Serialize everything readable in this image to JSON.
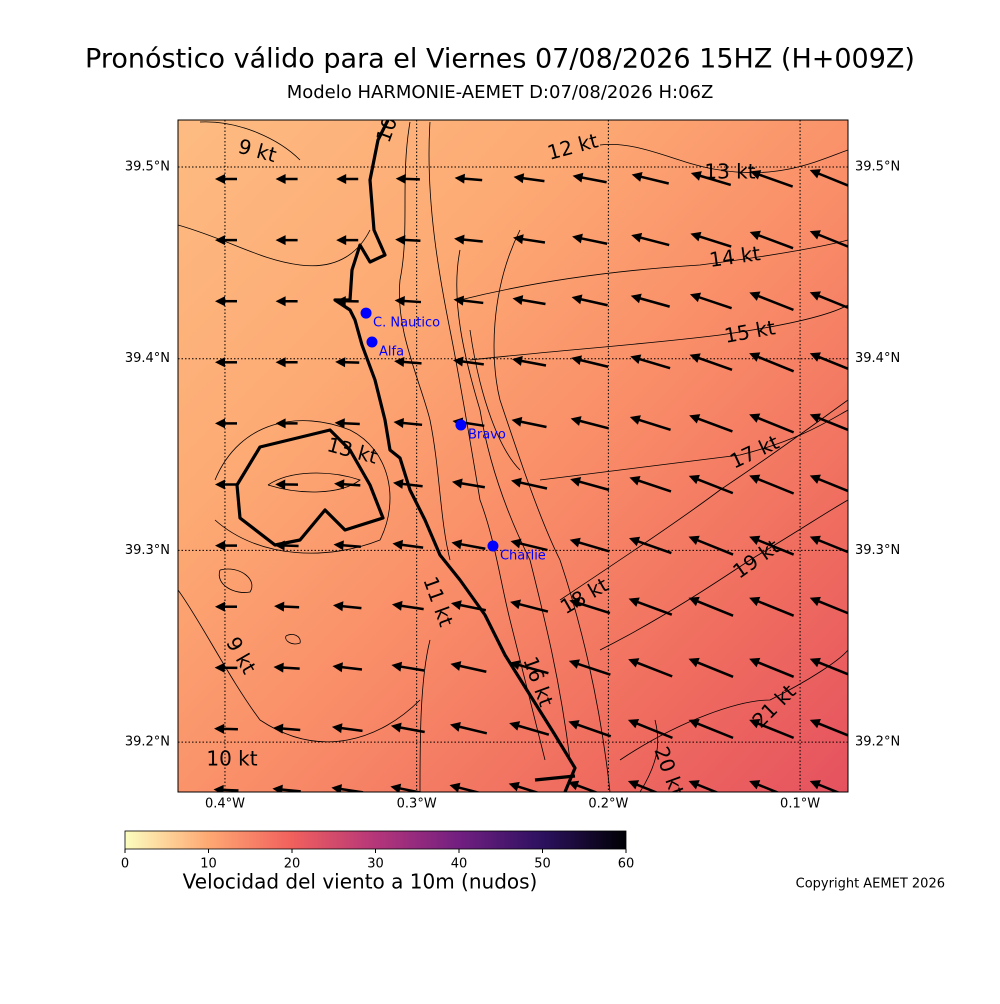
{
  "title": "Pronóstico válido para el Viernes 07/08/2026 15HZ (H+009Z)",
  "subtitle": "Modelo HARMONIE-AEMET D:07/08/2026 H:06Z",
  "copyright": "Copyright AEMET 2026",
  "chart_data": {
    "type": "map",
    "xlim": [
      -0.4245,
      -0.075
    ],
    "ylim": [
      39.174,
      39.5245
    ],
    "xticks": [
      {
        "value": -0.4,
        "label": "0.4°W"
      },
      {
        "value": -0.3,
        "label": "0.3°W"
      },
      {
        "value": -0.2,
        "label": "0.2°W"
      },
      {
        "value": -0.1,
        "label": "0.1°W"
      }
    ],
    "yticks": [
      {
        "value": 39.2,
        "label": "39.2°N"
      },
      {
        "value": 39.3,
        "label": "39.3°N"
      },
      {
        "value": 39.4,
        "label": "39.4°N"
      },
      {
        "value": 39.5,
        "label": "39.5°N"
      }
    ],
    "grid": true,
    "stations": {
      "color": "#0000ff",
      "names": [
        "C. Nautico",
        "Alfa",
        "Bravo",
        "Charlie"
      ],
      "lon": [
        -0.3264,
        -0.3233,
        -0.2769,
        -0.2602
      ],
      "lat": [
        39.4238,
        39.4087,
        39.3654,
        39.3023
      ]
    },
    "annotations": [
      "9 kt",
      "10",
      "12 kt",
      "13 kt",
      "14 kt",
      "15 kt",
      "17 kt",
      "13 kt",
      "11 kt",
      "18 kt",
      "19 kt",
      "16 kt",
      "21 kt",
      "9 kt",
      "10 kt",
      "20 kt"
    ],
    "colorbar": {
      "label": "Velocidad del viento a 10m (nudos)",
      "lim": [
        0,
        60
      ],
      "ticks": [
        0,
        10,
        20,
        30,
        40,
        50,
        60
      ],
      "colors": [
        "#fcfdbf",
        "#fea873",
        "#f1605d",
        "#b5367a",
        "#721f81",
        "#2c115f",
        "#000004"
      ]
    }
  }
}
